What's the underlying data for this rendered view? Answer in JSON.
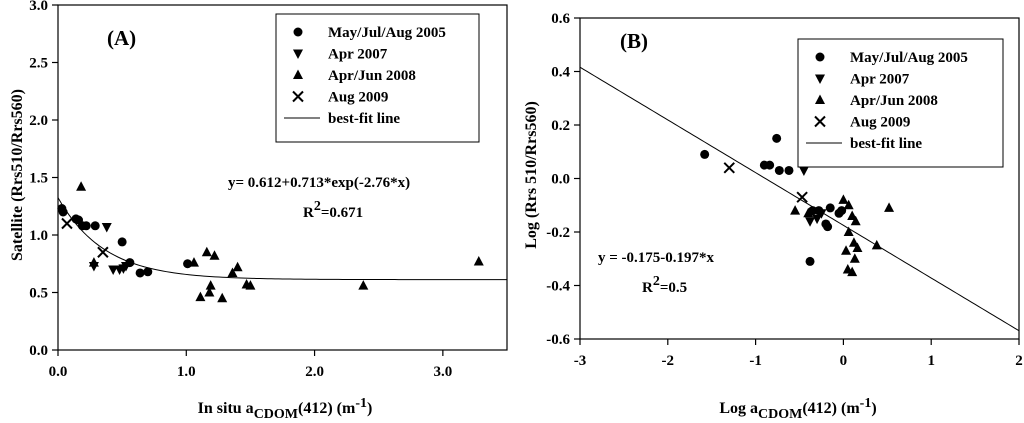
{
  "chart_data": [
    {
      "type": "scatter",
      "panel_label": "(A)",
      "xlabel": {
        "prefix": "In situ a",
        "sub": "CDOM",
        "mid": "(412) (m",
        "sup": "-1",
        "suffix": ")"
      },
      "ylabel": "Satellite (Rrs510/Rrs560)",
      "xlim": [
        0,
        3.5
      ],
      "ylim": [
        0,
        3
      ],
      "xticks": [
        0,
        1,
        2,
        3
      ],
      "xtick_labels": [
        "0.0",
        "1.0",
        "2.0",
        "3.0"
      ],
      "yticks": [
        0,
        0.5,
        1,
        1.5,
        2,
        2.5,
        3
      ],
      "ytick_labels": [
        "0.0",
        "0.5",
        "1.0",
        "1.5",
        "2.0",
        "2.5",
        "3.0"
      ],
      "legend": {
        "position": "top-right",
        "fit_label": "best-fit line"
      },
      "series": [
        {
          "name": "May/Jul/Aug 2005",
          "marker": "circle",
          "x": [
            0.03,
            0.04,
            0.14,
            0.16,
            0.19,
            0.22,
            0.29,
            0.5,
            0.56,
            0.64,
            0.7,
            1.01
          ],
          "y": [
            1.23,
            1.2,
            1.14,
            1.13,
            1.08,
            1.08,
            1.08,
            0.94,
            0.76,
            0.67,
            0.68,
            0.75
          ]
        },
        {
          "name": "Apr 2007",
          "marker": "triangle-down",
          "x": [
            0.28,
            0.38,
            0.43,
            0.48,
            0.51,
            0.53
          ],
          "y": [
            0.73,
            1.07,
            0.7,
            0.7,
            0.71,
            0.73
          ]
        },
        {
          "name": "Apr/Jun 2008",
          "marker": "triangle-up",
          "x": [
            0.18,
            0.28,
            1.06,
            1.11,
            1.16,
            1.18,
            1.19,
            1.22,
            1.28,
            1.36,
            1.4,
            1.47,
            1.5,
            2.38,
            3.28
          ],
          "y": [
            1.42,
            0.76,
            0.76,
            0.46,
            0.85,
            0.5,
            0.56,
            0.82,
            0.45,
            0.67,
            0.72,
            0.57,
            0.56,
            0.56,
            0.77
          ]
        },
        {
          "name": "Aug 2009",
          "marker": "x",
          "x": [
            0.07,
            0.35
          ],
          "y": [
            1.1,
            0.85
          ]
        }
      ],
      "fit": {
        "type": "exponential",
        "a": 0.612,
        "b": 0.713,
        "c": -2.76,
        "x_range": [
          0,
          3.5
        ]
      },
      "annotations": {
        "equation": "y= 0.612+0.713*exp(-2.76*x)",
        "r2_prefix": "R",
        "r2_sup": "2",
        "r2_suffix": "=0.671"
      }
    },
    {
      "type": "scatter",
      "panel_label": "(B)",
      "xlabel": {
        "prefix": "Log a",
        "sub": "CDOM",
        "mid": "(412) (m",
        "sup": "-1",
        "suffix": ")"
      },
      "ylabel": "Log (Rrs 510/Rrs560)",
      "xlim": [
        -3,
        2
      ],
      "ylim": [
        -0.6,
        0.6
      ],
      "xticks": [
        -3,
        -2,
        -1,
        0,
        1,
        2
      ],
      "xtick_labels": [
        "-3",
        "-2",
        "-1",
        "0",
        "1",
        "2"
      ],
      "yticks": [
        -0.6,
        -0.4,
        -0.2,
        0,
        0.2,
        0.4,
        0.6
      ],
      "ytick_labels": [
        "-0.6",
        "-0.4",
        "-0.2",
        "0.0",
        "0.2",
        "0.4",
        "0.6"
      ],
      "legend": {
        "position": "top-right",
        "fit_label": "best-fit line"
      },
      "series": [
        {
          "name": "May/Jul/Aug 2005",
          "marker": "circle",
          "x": [
            -1.58,
            -0.9,
            -0.84,
            -0.76,
            -0.73,
            -0.62,
            -0.35,
            -0.28,
            -0.2,
            -0.18,
            -0.15,
            -0.05,
            -0.02,
            -0.38
          ],
          "y": [
            0.09,
            0.05,
            0.05,
            0.15,
            0.03,
            0.03,
            -0.12,
            -0.12,
            -0.17,
            -0.18,
            -0.11,
            -0.13,
            -0.12,
            -0.31
          ]
        },
        {
          "name": "Apr 2007",
          "marker": "triangle-down",
          "x": [
            -0.45,
            -0.38,
            -0.3,
            -0.25
          ],
          "y": [
            0.03,
            -0.16,
            -0.15,
            -0.13
          ]
        },
        {
          "name": "Apr/Jun 2008",
          "marker": "triangle-up",
          "x": [
            -0.55,
            -0.4,
            0.0,
            0.03,
            0.06,
            0.06,
            0.1,
            0.12,
            0.13,
            0.14,
            0.16,
            0.38,
            0.52,
            0.05,
            0.1
          ],
          "y": [
            -0.12,
            -0.13,
            -0.08,
            -0.27,
            -0.1,
            -0.2,
            -0.14,
            -0.24,
            -0.3,
            -0.16,
            -0.26,
            -0.25,
            -0.11,
            -0.34,
            -0.35
          ]
        },
        {
          "name": "Aug 2009",
          "marker": "x",
          "x": [
            -1.3,
            -0.47
          ],
          "y": [
            0.04,
            -0.07
          ]
        }
      ],
      "fit": {
        "type": "linear",
        "intercept": -0.175,
        "slope": -0.197,
        "x_range": [
          -3,
          2
        ]
      },
      "annotations": {
        "equation": "y = -0.175-0.197*x",
        "r2_prefix": "R",
        "r2_sup": "2",
        "r2_suffix": "=0.5"
      }
    }
  ]
}
